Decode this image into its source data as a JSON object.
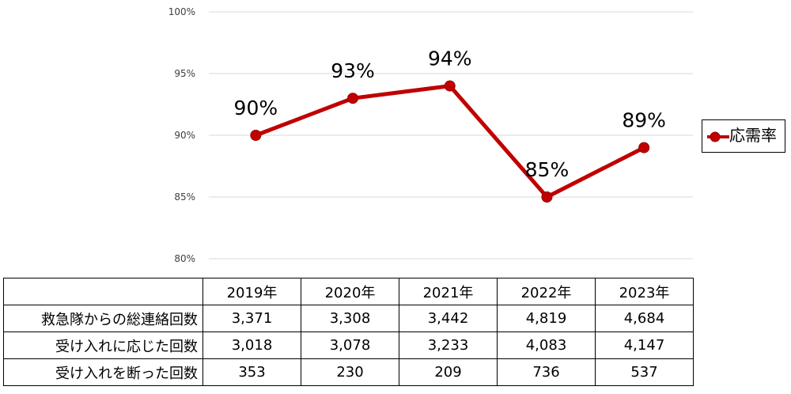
{
  "chart_data": {
    "type": "line",
    "categories": [
      "2019年",
      "2020年",
      "2021年",
      "2022年",
      "2023年"
    ],
    "series": [
      {
        "name": "応需率",
        "values": [
          90,
          93,
          94,
          85,
          89
        ],
        "color": "#c00000",
        "labels": [
          "90%",
          "93%",
          "94%",
          "85%",
          "89%"
        ]
      }
    ],
    "ylim": [
      80,
      100
    ],
    "yticks": [
      80,
      85,
      90,
      95,
      100
    ],
    "ytick_labels": [
      "80%",
      "85%",
      "90%",
      "95%",
      "100%"
    ],
    "grid": true,
    "legend": "right"
  },
  "table": {
    "columns": [
      "2019年",
      "2020年",
      "2021年",
      "2022年",
      "2023年"
    ],
    "rows": [
      {
        "label": "救急隊からの総連絡回数",
        "values": [
          "3,371",
          "3,308",
          "3,442",
          "4,819",
          "4,684"
        ]
      },
      {
        "label": "受け入れに応じた回数",
        "values": [
          "3,018",
          "3,078",
          "3,233",
          "4,083",
          "4,147"
        ]
      },
      {
        "label": "受け入れを断った回数",
        "values": [
          "353",
          "230",
          "209",
          "736",
          "537"
        ]
      }
    ]
  },
  "colors": {
    "series": "#c00000",
    "grid": "#d9d9d9",
    "axis_text": "#404040"
  }
}
